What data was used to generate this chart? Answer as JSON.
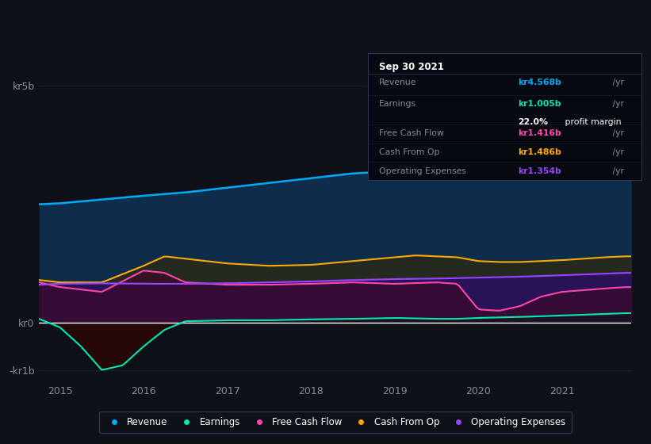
{
  "background_color": "#0e1117",
  "plot_bg_color": "#0e1117",
  "revenue_color": "#00aaff",
  "earnings_color": "#00e8b0",
  "free_cash_flow_color": "#ff44aa",
  "cash_from_op_color": "#ffaa00",
  "operating_expenses_color": "#9944ff",
  "revenue_fill": "#0a2a4a",
  "earnings_fill_neg": "#1a0a0a",
  "cash_from_op_fill": "#3a3020",
  "free_cash_flow_fill": "#3a1030",
  "operating_expenses_fill": "#2a1a50",
  "grid_color": "#1e2535",
  "zero_line_color": "#ffffff",
  "tooltip": {
    "date": "Sep 30 2021",
    "revenue_val": "kr4.568b",
    "earnings_val": "kr1.005b",
    "profit_margin": "22.0%",
    "free_cash_flow_val": "kr1.416b",
    "cash_from_op_val": "kr1.486b",
    "operating_expenses_val": "kr1.354b"
  }
}
